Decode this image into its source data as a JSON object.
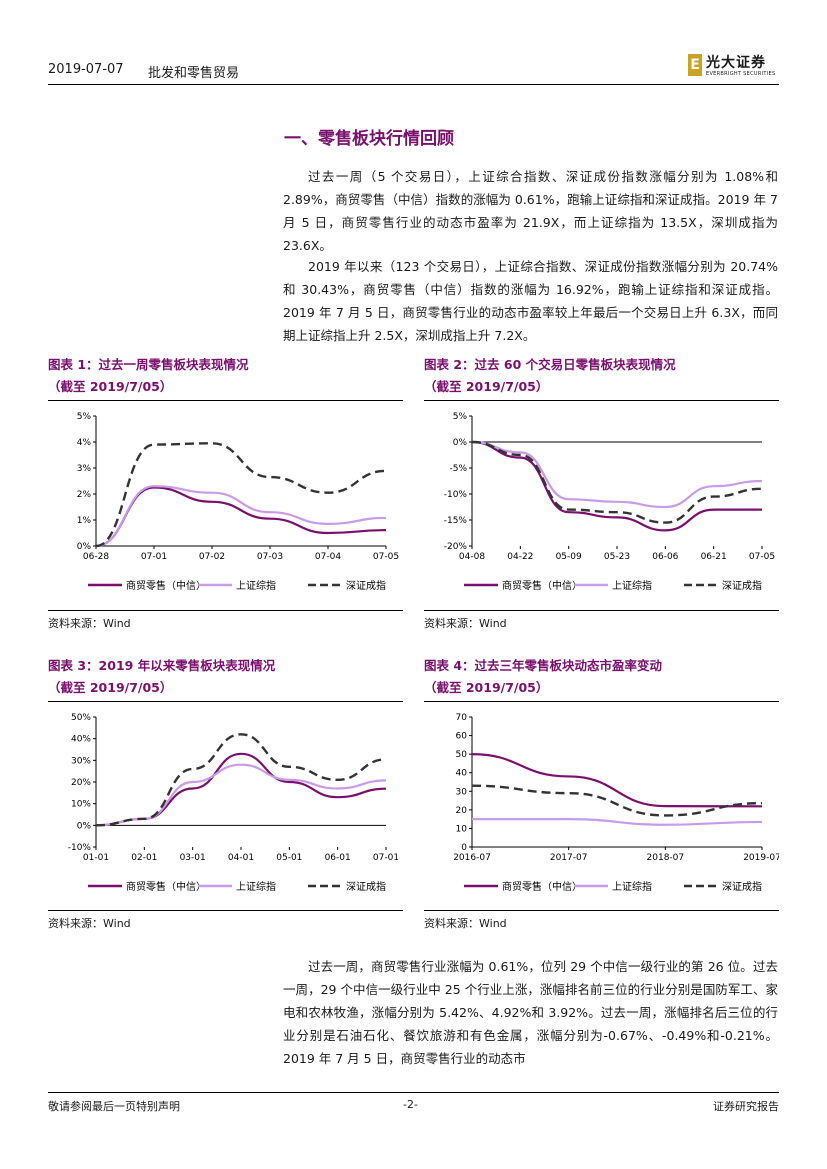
{
  "header": {
    "date": "2019-07-07",
    "title": "批发和零售贸易",
    "logo_cn": "光大证券",
    "logo_en": "EVERBRIGHT SECURITIES",
    "logo_mark": "E"
  },
  "section_title": "一、零售板块行情回顾",
  "paragraphs": {
    "p1": "过去一周（5 个交易日），上证综合指数、深证成份指数涨幅分别为 1.08%和 2.89%，商贸零售（中信）指数的涨幅为 0.61%，跑输上证综指和深证成指。2019 年 7 月 5 日，商贸零售行业的动态市盈率为 21.9X，而上证综指为 13.5X，深圳成指为 23.6X。",
    "p2": "2019 年以来（123 个交易日），上证综合指数、深证成份指数涨幅分别为 20.74%和 30.43%，商贸零售（中信）指数的涨幅为 16.92%，跑输上证综指和深证成指。2019 年 7 月 5 日，商贸零售行业的动态市盈率较上年最后一个交易日上升 6.3X，而同期上证综指上升 2.5X，深圳成指上升 7.2X。",
    "p3": "过去一周，商贸零售行业涨幅为 0.61%，位列 29 个中信一级行业的第 26 位。过去一周，29 个中信一级行业中 25 个行业上涨，涨幅排名前三位的行业分别是国防军工、家电和农林牧渔，涨幅分别为 5.42%、4.92%和 3.92%。过去一周，涨幅排名后三位的行业分别是石油石化、餐饮旅游和有色金属，涨幅分别为-0.67%、-0.49%和-0.21%。2019 年 7 月 5 日，商贸零售行业的动态市"
  },
  "figures": [
    {
      "title": "图表 1：过去一周零售板块表现情况",
      "subtitle": "（截至 2019/7/05）",
      "source": "资料来源：Wind"
    },
    {
      "title": "图表 2：过去 60 个交易日零售板块表现情况",
      "subtitle": "（截至 2019/7/05）",
      "source": "资料来源：Wind"
    },
    {
      "title": "图表 3：2019 年以来零售板块表现情况",
      "subtitle": "（截至 2019/7/05）",
      "source": "资料来源：Wind"
    },
    {
      "title": "图表 4：过去三年零售板块动态市盈率变动",
      "subtitle": "（截至 2019/7/05）",
      "source": "资料来源：Wind"
    }
  ],
  "colors": {
    "retail": "#7a0f6e",
    "shanghai": "#c79be8",
    "shenzhen": "#333333",
    "title": "#7a0f6e"
  },
  "chart_data": [
    {
      "type": "line",
      "x": [
        "06-28",
        "07-01",
        "07-02",
        "07-03",
        "07-04",
        "07-05"
      ],
      "ylim": [
        0,
        5
      ],
      "yticks": [
        "0%",
        "1%",
        "2%",
        "3%",
        "4%",
        "5%"
      ],
      "series": [
        {
          "name": "商贸零售（中信）",
          "values": [
            0.0,
            2.25,
            1.7,
            1.05,
            0.5,
            0.61
          ]
        },
        {
          "name": "上证综指",
          "values": [
            0.0,
            2.3,
            2.05,
            1.3,
            0.85,
            1.08
          ]
        },
        {
          "name": "深证成指",
          "values": [
            0.0,
            3.9,
            3.95,
            2.65,
            2.05,
            2.89
          ]
        }
      ]
    },
    {
      "type": "line",
      "x": [
        "04-08",
        "04-22",
        "05-09",
        "05-23",
        "06-06",
        "06-21",
        "07-05"
      ],
      "ylim": [
        -20,
        5
      ],
      "yticks": [
        "-20%",
        "-15%",
        "-10%",
        "-5%",
        "0%",
        "5%"
      ],
      "series": [
        {
          "name": "商贸零售（中信）",
          "values": [
            0.0,
            -3.0,
            -13.5,
            -14.5,
            -17.0,
            -13.0,
            -13.0
          ]
        },
        {
          "name": "上证综指",
          "values": [
            0.0,
            -2.0,
            -11.0,
            -11.5,
            -12.5,
            -8.5,
            -7.5
          ]
        },
        {
          "name": "深证成指",
          "values": [
            0.0,
            -2.5,
            -13.0,
            -13.5,
            -15.5,
            -10.5,
            -9.0
          ]
        }
      ]
    },
    {
      "type": "line",
      "x": [
        "01-01",
        "02-01",
        "03-01",
        "04-01",
        "05-01",
        "06-01",
        "07-01"
      ],
      "ylim": [
        -10,
        50
      ],
      "yticks": [
        "-10%",
        "0%",
        "10%",
        "20%",
        "30%",
        "40%",
        "50%"
      ],
      "series": [
        {
          "name": "商贸零售（中信）",
          "values": [
            0,
            3,
            17,
            33,
            20,
            13,
            16.92
          ]
        },
        {
          "name": "上证综指",
          "values": [
            0,
            3,
            20,
            28,
            21,
            17,
            20.74
          ]
        },
        {
          "name": "深证成指",
          "values": [
            0,
            3,
            26,
            42,
            27,
            21,
            30.43
          ]
        }
      ]
    },
    {
      "type": "line",
      "x": [
        "2016-07",
        "2017-07",
        "2018-07",
        "2019-07"
      ],
      "ylim": [
        0,
        70
      ],
      "yticks": [
        "0",
        "10",
        "20",
        "30",
        "40",
        "50",
        "60",
        "70"
      ],
      "series": [
        {
          "name": "商贸零售（中信）",
          "values": [
            50,
            38,
            22,
            21.9
          ]
        },
        {
          "name": "上证综指",
          "values": [
            15,
            15,
            12,
            13.5
          ]
        },
        {
          "name": "深证成指",
          "values": [
            33,
            29,
            17,
            23.6
          ]
        }
      ]
    }
  ],
  "footer": {
    "left": "敬请参阅最后一页特别声明",
    "center": "-2-",
    "right": "证券研究报告"
  }
}
